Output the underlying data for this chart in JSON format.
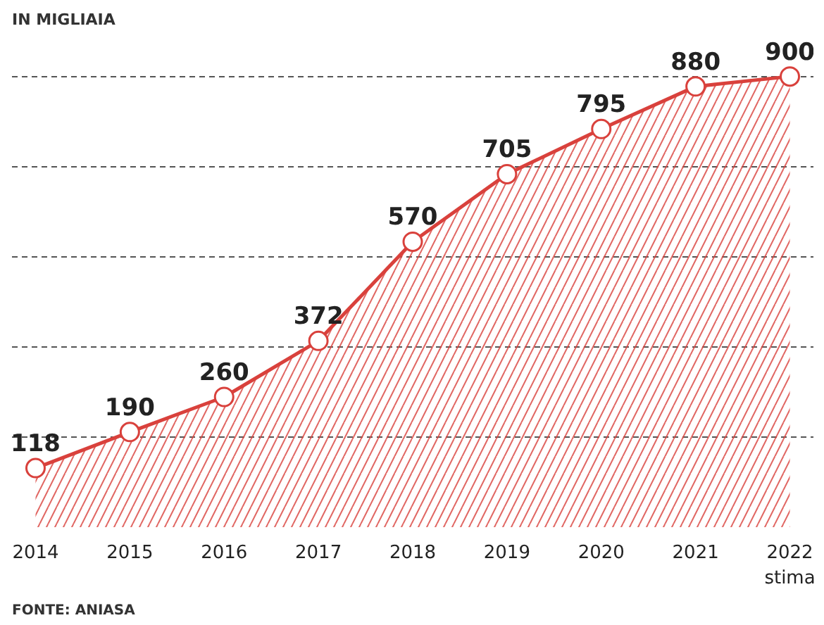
{
  "chart_data": {
    "type": "area",
    "title": "IN MIGLIAIA",
    "categories": [
      "2014",
      "2015",
      "2016",
      "2017",
      "2018",
      "2019",
      "2020",
      "2021",
      "2022\nstima"
    ],
    "series": [
      {
        "color": "#d9413c",
        "values": [
          118,
          190,
          260,
          372,
          570,
          705,
          795,
          880,
          900
        ]
      }
    ],
    "ylim": [
      0,
      900
    ],
    "yticks": [
      {
        "value": 180,
        "label": null
      },
      {
        "value": 360,
        "label": null
      },
      {
        "value": 540,
        "label": null
      },
      {
        "value": 720,
        "label": null
      },
      {
        "value": 900,
        "label": null
      }
    ],
    "grid": "y",
    "marker": "circle",
    "data_labels": true,
    "tick_labels": "x",
    "annotations": [
      "FONTE: ANIASA"
    ]
  }
}
